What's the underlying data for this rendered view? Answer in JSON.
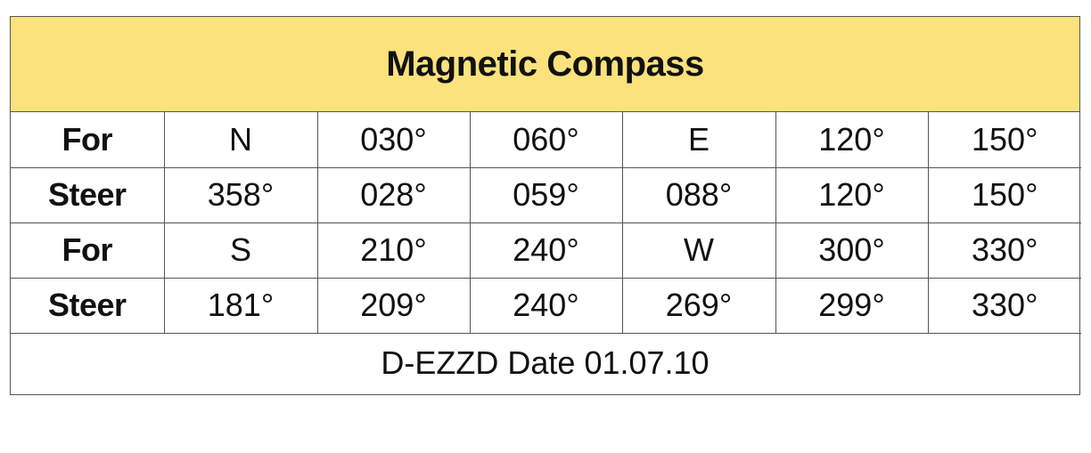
{
  "title": "Magnetic Compass",
  "rows": [
    {
      "label": "For",
      "cells": [
        "N",
        "030°",
        "060°",
        "E",
        "120°",
        "150°"
      ]
    },
    {
      "label": "Steer",
      "cells": [
        "358°",
        "028°",
        "059°",
        "088°",
        "120°",
        "150°"
      ]
    },
    {
      "label": "For",
      "cells": [
        "S",
        "210°",
        "240°",
        "W",
        "300°",
        "330°"
      ]
    },
    {
      "label": "Steer",
      "cells": [
        "181°",
        "209°",
        "240°",
        "269°",
        "299°",
        "330°"
      ]
    }
  ],
  "footer": "D-EZZD Date 01.07.10",
  "colors": {
    "title_band": "#fbe27c",
    "border": "#555555",
    "text": "#111111"
  }
}
